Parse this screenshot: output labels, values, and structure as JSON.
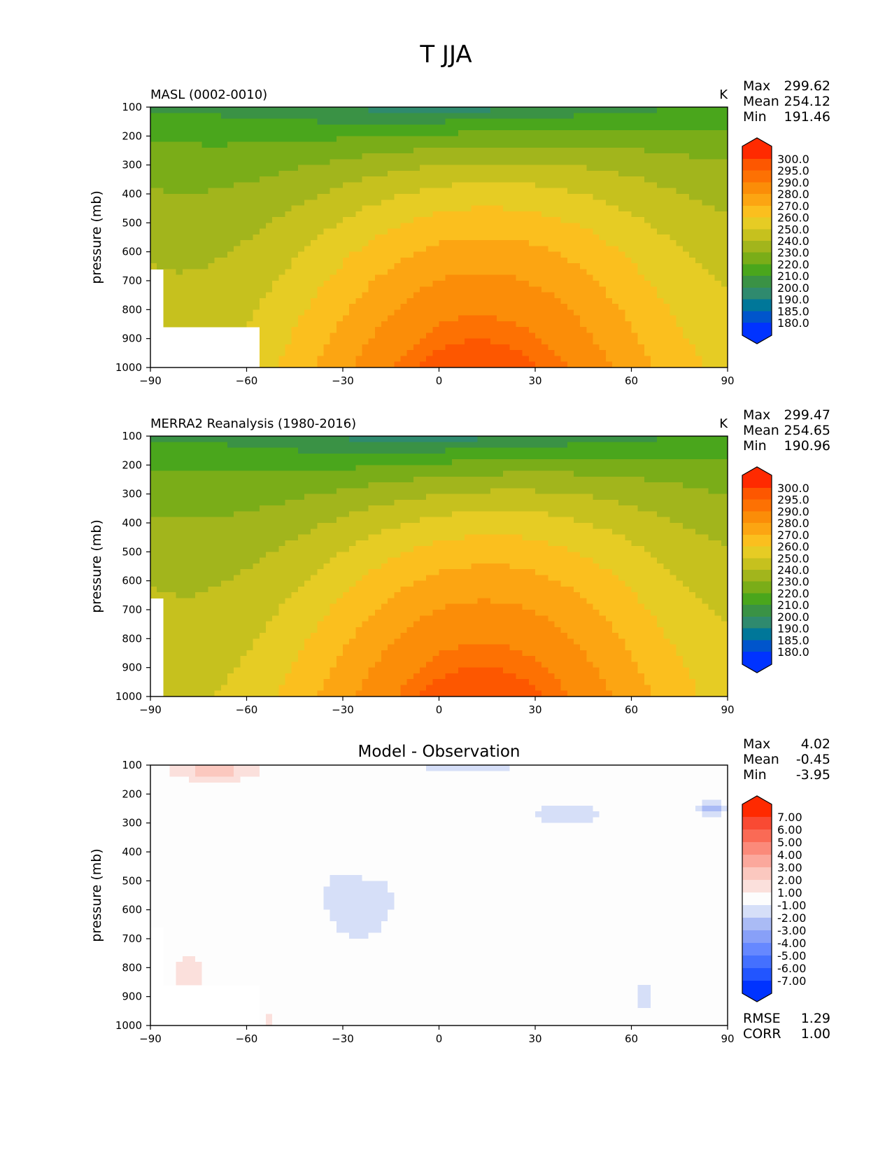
{
  "suptitle": "T JJA",
  "chart_data": [
    {
      "type": "heatmap",
      "title": "MASL (0002-0010)",
      "units": "K",
      "xlabel": "",
      "ylabel": "pressure (mb)",
      "xlim": [
        -90,
        90
      ],
      "ylim": [
        1000,
        100
      ],
      "x_ticks": [
        "−90",
        "−60",
        "−30",
        "0",
        "30",
        "60",
        "90"
      ],
      "y_ticks": [
        "100",
        "200",
        "300",
        "400",
        "500",
        "600",
        "700",
        "800",
        "900",
        "1000"
      ],
      "stats": [
        {
          "label": "Max",
          "value": "299.62"
        },
        {
          "label": "Mean",
          "value": "254.12"
        },
        {
          "label": "Min",
          "value": "191.46"
        }
      ],
      "levels": [
        "180.0",
        "185.0",
        "190.0",
        "200.0",
        "210.0",
        "220.0",
        "230.0",
        "240.0",
        "250.0",
        "260.0",
        "270.0",
        "280.0",
        "290.0",
        "295.0",
        "300.0"
      ],
      "colors": [
        "#0033ff",
        "#0055cc",
        "#007799",
        "#2f8a6e",
        "#3a9245",
        "#4aa61c",
        "#7aad18",
        "#a2b51c",
        "#c6c11e",
        "#e6cc24",
        "#fbbf1e",
        "#fca512",
        "#fb8d08",
        "#fd7103",
        "#fd5700",
        "#ff2a00"
      ],
      "masked": "surface mask near -90 to -55 below 650 mb"
    },
    {
      "type": "heatmap",
      "title": "MERRA2 Reanalysis (1980-2016)",
      "units": "K",
      "xlabel": "",
      "ylabel": "pressure (mb)",
      "xlim": [
        -90,
        90
      ],
      "ylim": [
        1000,
        100
      ],
      "x_ticks": [
        "−90",
        "−60",
        "−30",
        "0",
        "30",
        "60",
        "90"
      ],
      "y_ticks": [
        "100",
        "200",
        "300",
        "400",
        "500",
        "600",
        "700",
        "800",
        "900",
        "1000"
      ],
      "stats": [
        {
          "label": "Max",
          "value": "299.47"
        },
        {
          "label": "Mean",
          "value": "254.65"
        },
        {
          "label": "Min",
          "value": "190.96"
        }
      ],
      "levels": [
        "180.0",
        "185.0",
        "190.0",
        "200.0",
        "210.0",
        "220.0",
        "230.0",
        "240.0",
        "250.0",
        "260.0",
        "270.0",
        "280.0",
        "290.0",
        "295.0",
        "300.0"
      ],
      "colors": [
        "#0033ff",
        "#0055cc",
        "#007799",
        "#2f8a6e",
        "#3a9245",
        "#4aa61c",
        "#7aad18",
        "#a2b51c",
        "#c6c11e",
        "#e6cc24",
        "#fbbf1e",
        "#fca512",
        "#fb8d08",
        "#fd7103",
        "#fd5700",
        "#ff2a00"
      ]
    },
    {
      "type": "heatmap",
      "title": "Model - Observation",
      "units": "",
      "xlabel": "",
      "ylabel": "pressure (mb)",
      "xlim": [
        -90,
        90
      ],
      "ylim": [
        1000,
        100
      ],
      "x_ticks": [
        "−90",
        "−60",
        "−30",
        "0",
        "30",
        "60",
        "90"
      ],
      "y_ticks": [
        "100",
        "200",
        "300",
        "400",
        "500",
        "600",
        "700",
        "800",
        "900",
        "1000"
      ],
      "stats": [
        {
          "label": "Max",
          "value": "4.02"
        },
        {
          "label": "Mean",
          "value": "-0.45"
        },
        {
          "label": "Min",
          "value": "-3.95"
        }
      ],
      "bottom_stats": [
        {
          "label": "RMSE",
          "value": "1.29"
        },
        {
          "label": "CORR",
          "value": "1.00"
        }
      ],
      "levels": [
        "-7.00",
        "-6.00",
        "-5.00",
        "-4.00",
        "-3.00",
        "-2.00",
        "-1.00",
        "1.00",
        "2.00",
        "3.00",
        "4.00",
        "5.00",
        "6.00",
        "7.00"
      ],
      "colors": [
        "#0033ff",
        "#2255ff",
        "#4470ff",
        "#6688ff",
        "#88a0f8",
        "#aabbf5",
        "#d6dff8",
        "#fdfdfd",
        "#fbe0dc",
        "#fbc8bf",
        "#fba89c",
        "#fb8a7a",
        "#fa6a55",
        "#f94a33",
        "#ff2a00"
      ]
    }
  ]
}
